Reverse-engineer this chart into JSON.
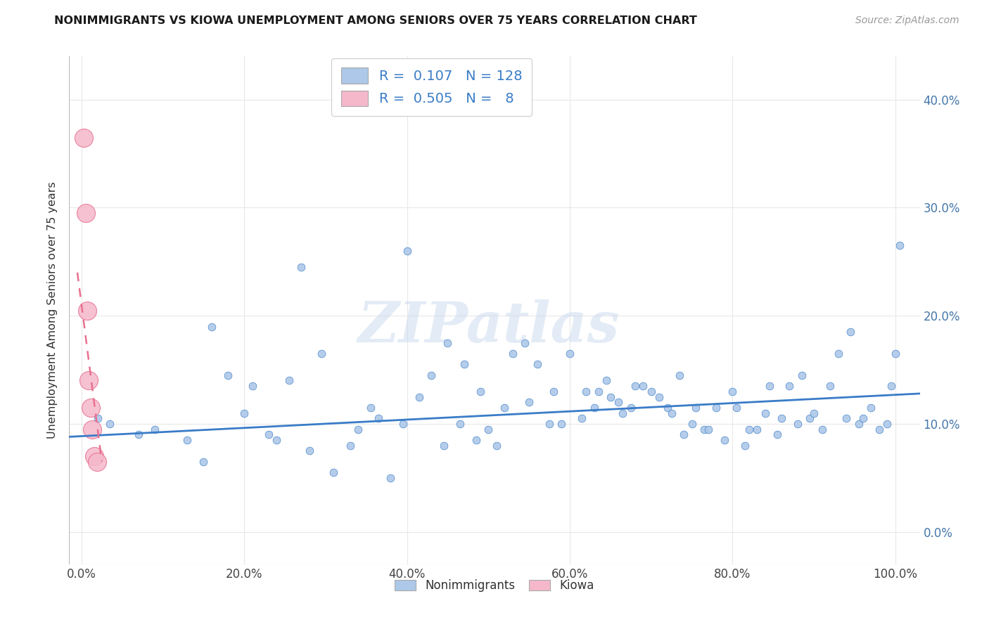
{
  "title": "NONIMMIGRANTS VS KIOWA UNEMPLOYMENT AMONG SENIORS OVER 75 YEARS CORRELATION CHART",
  "source": "Source: ZipAtlas.com",
  "xlabel_vals": [
    0,
    20,
    40,
    60,
    80,
    100
  ],
  "ylabel_vals": [
    0,
    10,
    20,
    30,
    40
  ],
  "xmin": -1.5,
  "xmax": 103,
  "ymin": -3,
  "ymax": 44,
  "legend_entries": [
    {
      "label": "Nonimmigrants",
      "R": "0.107",
      "N": "128",
      "color": "#adc8e8"
    },
    {
      "label": "Kiowa",
      "R": "0.505",
      "N": "8",
      "color": "#f5b8cb"
    }
  ],
  "blue_line_color": "#3a7cc7",
  "pink_line_color": "#e87090",
  "scatter_blue_color": "#adc8e8",
  "scatter_pink_color": "#f5b8cb",
  "blue_scatter_x": [
    2.0,
    3.5,
    7.0,
    9.0,
    13.0,
    15.0,
    16.0,
    18.0,
    20.0,
    21.0,
    23.0,
    24.0,
    25.5,
    27.0,
    28.0,
    29.5,
    31.0,
    33.0,
    34.0,
    35.5,
    36.5,
    38.0,
    39.5,
    40.0,
    41.5,
    43.0,
    44.5,
    45.0,
    46.5,
    47.0,
    48.5,
    49.0,
    50.0,
    51.0,
    52.0,
    53.0,
    54.5,
    55.0,
    56.0,
    57.5,
    58.0,
    59.0,
    60.0,
    61.5,
    62.0,
    63.0,
    63.5,
    64.5,
    65.0,
    66.0,
    66.5,
    67.5,
    68.0,
    69.0,
    70.0,
    71.0,
    72.0,
    72.5,
    73.5,
    74.0,
    75.0,
    75.5,
    76.5,
    77.0,
    78.0,
    79.0,
    80.0,
    80.5,
    81.5,
    82.0,
    83.0,
    84.0,
    84.5,
    85.5,
    86.0,
    87.0,
    88.0,
    88.5,
    89.5,
    90.0,
    91.0,
    92.0,
    93.0,
    94.0,
    94.5,
    95.5,
    96.0,
    97.0,
    98.0,
    99.0,
    99.5,
    100.0,
    100.5
  ],
  "blue_scatter_y": [
    10.5,
    10.0,
    9.0,
    9.5,
    8.5,
    6.5,
    19.0,
    14.5,
    11.0,
    13.5,
    9.0,
    8.5,
    14.0,
    24.5,
    7.5,
    16.5,
    5.5,
    8.0,
    9.5,
    11.5,
    10.5,
    5.0,
    10.0,
    26.0,
    12.5,
    14.5,
    8.0,
    17.5,
    10.0,
    15.5,
    8.5,
    13.0,
    9.5,
    8.0,
    11.5,
    16.5,
    17.5,
    12.0,
    15.5,
    10.0,
    13.0,
    10.0,
    16.5,
    10.5,
    13.0,
    11.5,
    13.0,
    14.0,
    12.5,
    12.0,
    11.0,
    11.5,
    13.5,
    13.5,
    13.0,
    12.5,
    11.5,
    11.0,
    14.5,
    9.0,
    10.0,
    11.5,
    9.5,
    9.5,
    11.5,
    8.5,
    13.0,
    11.5,
    8.0,
    9.5,
    9.5,
    11.0,
    13.5,
    9.0,
    10.5,
    13.5,
    10.0,
    14.5,
    10.5,
    11.0,
    9.5,
    13.5,
    16.5,
    10.5,
    18.5,
    10.0,
    10.5,
    11.5,
    9.5,
    10.0,
    13.5,
    16.5,
    26.5
  ],
  "pink_scatter_x": [
    0.3,
    0.5,
    0.7,
    0.9,
    1.1,
    1.3,
    1.6,
    1.9
  ],
  "pink_scatter_y": [
    36.5,
    29.5,
    20.5,
    14.0,
    11.5,
    9.5,
    7.0,
    6.5
  ],
  "blue_trend_x": [
    -1.5,
    103
  ],
  "blue_trend_y": [
    8.8,
    12.8
  ],
  "pink_trend_x": [
    -0.5,
    2.5
  ],
  "pink_trend_y": [
    24.0,
    6.5
  ],
  "watermark": "ZIPatlas",
  "background_color": "#ffffff",
  "grid_color": "#e8e8e8",
  "tick_color": "#4477aa",
  "tick_label_color": "#4477aa"
}
